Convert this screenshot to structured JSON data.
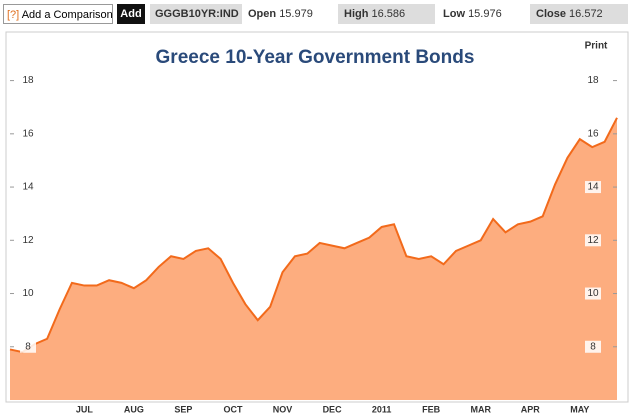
{
  "toolbar": {
    "help": "[?]",
    "comparison": "Add a Comparison",
    "add": "Add",
    "ticker": "GGGB10YR:IND",
    "open_label": "Open",
    "open": 15.979,
    "high_label": "High",
    "high": 16.586,
    "low_label": "Low",
    "low": 15.976,
    "close_label": "Close",
    "close": 16.572
  },
  "print": "Print",
  "chart_data": {
    "type": "area",
    "title": "Greece 10-Year Government Bonds",
    "categories": [
      null,
      null,
      null,
      null,
      null,
      null,
      "JUL",
      null,
      null,
      null,
      "AUG",
      null,
      null,
      null,
      "SEP",
      null,
      null,
      null,
      "OCT",
      null,
      null,
      null,
      "NOV",
      null,
      null,
      null,
      "DEC",
      null,
      null,
      null,
      "2011",
      null,
      null,
      null,
      "FEB",
      null,
      null,
      null,
      "MAR",
      null,
      null,
      null,
      "APR",
      null,
      null,
      null,
      "MAY",
      null,
      null,
      null
    ],
    "values": [
      7.9,
      7.8,
      8.1,
      8.3,
      9.4,
      10.4,
      10.3,
      10.3,
      10.5,
      10.4,
      10.2,
      10.5,
      11.0,
      11.4,
      11.3,
      11.6,
      11.7,
      11.3,
      10.4,
      9.6,
      9.0,
      9.5,
      10.8,
      11.4,
      11.5,
      11.9,
      11.8,
      11.7,
      11.9,
      12.1,
      12.5,
      12.6,
      11.4,
      11.3,
      11.4,
      11.1,
      11.6,
      11.8,
      12.0,
      12.8,
      12.3,
      12.6,
      12.7,
      12.9,
      14.1,
      15.1,
      15.8,
      15.5,
      15.7,
      16.6
    ],
    "color": "#f26a1b",
    "fill": "#fdad7f",
    "ylim": [
      6,
      19.6
    ],
    "yticks": [
      8,
      10,
      12,
      14,
      16,
      18
    ]
  }
}
